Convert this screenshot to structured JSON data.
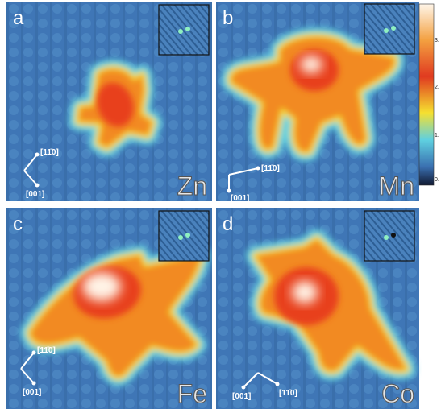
{
  "panels": [
    {
      "label": "a",
      "element": "Zn",
      "axis_up": "[11̄0]",
      "axis_down": "[001]"
    },
    {
      "label": "b",
      "element": "Mn",
      "axis_up": "[11̄0]",
      "axis_down": "[001]"
    },
    {
      "label": "c",
      "element": "Fe",
      "axis_up": "[11̄0]",
      "axis_down": "[001]"
    },
    {
      "label": "d",
      "element": "Co",
      "axis_up": "[11̄0]",
      "axis_down": "[001]"
    }
  ],
  "colorbar": {
    "ticks": [
      "3.",
      "2.",
      "1.",
      "0."
    ]
  }
}
